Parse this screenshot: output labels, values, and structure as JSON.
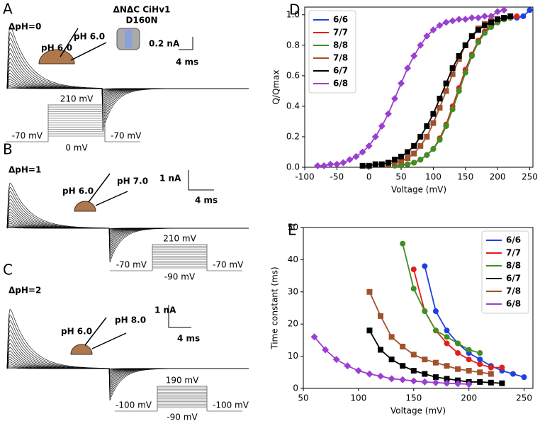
{
  "panels": [
    {
      "label": "A",
      "delta": "ΔpH=0",
      "ph_left": "pH 6.0",
      "ph_right": "pH 6.0",
      "scale_current": "0.2 nA",
      "scale_time": "4 ms",
      "construct": [
        "ΔNΔC CiHv1",
        "D160N"
      ],
      "protocol": {
        "step": "210 mV",
        "hold_left": "-70 mV",
        "low": "0 mV",
        "hold_right": "-70 mV"
      }
    },
    {
      "label": "B",
      "delta": "ΔpH=1",
      "ph_left": "pH 6.0",
      "ph_right": "pH 7.0",
      "scale_current": "1 nA",
      "scale_time": "4 ms",
      "protocol": {
        "step": "210 mV",
        "hold_left": "-70 mV",
        "low": "-90 mV",
        "hold_right": "-70 mV"
      }
    },
    {
      "label": "C",
      "delta": "ΔpH=2",
      "ph_left": "pH 6.0",
      "ph_right": "pH 8.0",
      "scale_current": "1 nA",
      "scale_time": "4 ms",
      "protocol": {
        "step": "190 mV",
        "hold_left": "-100 mV",
        "low": "-90 mV",
        "hold_right": "-100 mV"
      }
    }
  ],
  "chart_data": [
    {
      "type": "line",
      "panel_label": "D",
      "xlabel": "Voltage (mV)",
      "ylabel": "Q/Qmax",
      "xlim": [
        -100,
        255
      ],
      "ylim": [
        0,
        1.05
      ],
      "xticks": [
        -100,
        -50,
        0,
        50,
        100,
        150,
        200,
        250
      ],
      "yticks": [
        {
          "value": 0,
          "label": "0.0"
        },
        0.2,
        0.4,
        0.6,
        0.8,
        {
          "value": 1,
          "label": "1.0"
        }
      ],
      "legend": "upper left",
      "series": [
        {
          "name": "6/6",
          "color": "#1f3fe0",
          "marker": "circle",
          "x": [
            60,
            70,
            80,
            90,
            100,
            110,
            120,
            130,
            140,
            150,
            160,
            170,
            180,
            190,
            200,
            210,
            220,
            230,
            240,
            250
          ],
          "values": [
            0.02,
            0.03,
            0.05,
            0.08,
            0.12,
            0.18,
            0.27,
            0.38,
            0.5,
            0.62,
            0.73,
            0.82,
            0.88,
            0.92,
            0.95,
            0.97,
            0.98,
            0.98,
            0.99,
            1.03
          ]
        },
        {
          "name": "7/7",
          "color": "#e0201c",
          "marker": "circle",
          "x": [
            50,
            60,
            70,
            80,
            90,
            100,
            110,
            120,
            130,
            140,
            150,
            160,
            170,
            180,
            190,
            200,
            210,
            220,
            230
          ],
          "values": [
            0.02,
            0.02,
            0.03,
            0.05,
            0.08,
            0.12,
            0.19,
            0.28,
            0.4,
            0.52,
            0.64,
            0.74,
            0.83,
            0.89,
            0.93,
            0.95,
            0.97,
            0.98,
            0.99
          ]
        },
        {
          "name": "8/8",
          "color": "#3f8f22",
          "marker": "circle",
          "x": [
            40,
            50,
            60,
            70,
            80,
            90,
            100,
            110,
            120,
            130,
            140,
            150,
            160,
            170,
            180,
            190,
            200,
            210,
            220
          ],
          "values": [
            0.01,
            0.01,
            0.02,
            0.03,
            0.05,
            0.08,
            0.12,
            0.18,
            0.27,
            0.38,
            0.5,
            0.62,
            0.73,
            0.82,
            0.88,
            0.92,
            0.95,
            0.97,
            0.98
          ]
        },
        {
          "name": "7/8",
          "color": "#a0522d",
          "marker": "square",
          "x": [
            30,
            40,
            50,
            60,
            70,
            80,
            90,
            100,
            110,
            120,
            130,
            140,
            150,
            160,
            170,
            180,
            190,
            200,
            210
          ],
          "values": [
            0.02,
            0.03,
            0.04,
            0.06,
            0.09,
            0.14,
            0.2,
            0.29,
            0.39,
            0.5,
            0.61,
            0.71,
            0.8,
            0.86,
            0.91,
            0.94,
            0.96,
            0.97,
            0.98
          ]
        },
        {
          "name": "6/7",
          "color": "#000000",
          "marker": "square",
          "x": [
            -10,
            0,
            10,
            20,
            30,
            40,
            50,
            60,
            70,
            80,
            90,
            100,
            110,
            120,
            130,
            140,
            150,
            160,
            170,
            180,
            190,
            200,
            210,
            220
          ],
          "values": [
            0.01,
            0.01,
            0.02,
            0.02,
            0.03,
            0.05,
            0.07,
            0.1,
            0.14,
            0.2,
            0.27,
            0.35,
            0.45,
            0.55,
            0.65,
            0.73,
            0.8,
            0.86,
            0.9,
            0.93,
            0.95,
            0.97,
            0.98,
            0.99
          ]
        },
        {
          "name": "6/8",
          "color": "#9b3fd0",
          "marker": "diamond",
          "x": [
            -80,
            -70,
            -60,
            -50,
            -40,
            -30,
            -20,
            -10,
            0,
            10,
            20,
            30,
            40,
            50,
            60,
            70,
            80,
            90,
            100,
            110,
            120,
            130,
            140,
            150,
            160,
            170,
            180,
            190,
            200,
            210
          ],
          "values": [
            0.01,
            0.01,
            0.02,
            0.02,
            0.03,
            0.05,
            0.07,
            0.1,
            0.14,
            0.2,
            0.27,
            0.35,
            0.45,
            0.55,
            0.65,
            0.73,
            0.8,
            0.86,
            0.9,
            0.93,
            0.95,
            0.96,
            0.97,
            0.97,
            0.98,
            0.98,
            0.99,
            0.99,
            1.02,
            1.03
          ]
        }
      ]
    },
    {
      "type": "line",
      "panel_label": "E",
      "xlabel": "Voltage (mV)",
      "ylabel": "Time constant (ms)",
      "xlim": [
        50,
        258
      ],
      "ylim": [
        0,
        50
      ],
      "xticks": [
        50,
        100,
        150,
        200,
        250
      ],
      "yticks": [
        0,
        10,
        20,
        30,
        40,
        50
      ],
      "legend": "upper right",
      "series": [
        {
          "name": "6/6",
          "color": "#1f3fe0",
          "marker": "circle",
          "x": [
            160,
            170,
            180,
            190,
            200,
            210,
            220,
            230,
            240,
            250
          ],
          "values": [
            38,
            24,
            18,
            14,
            11,
            9,
            7,
            5.5,
            4.5,
            3.5
          ]
        },
        {
          "name": "7/7",
          "color": "#e0201c",
          "marker": "circle",
          "x": [
            150,
            160,
            170,
            180,
            190,
            200,
            210,
            220,
            230
          ],
          "values": [
            37,
            24,
            18,
            14,
            11,
            9,
            7.5,
            6.5,
            6.5
          ]
        },
        {
          "name": "8/8",
          "color": "#3f8f22",
          "marker": "circle",
          "x": [
            140,
            150,
            160,
            170,
            180,
            190,
            200,
            210
          ],
          "values": [
            45,
            31,
            24,
            18,
            16,
            14,
            12,
            11
          ]
        },
        {
          "name": "6/7",
          "color": "#000000",
          "marker": "square",
          "x": [
            110,
            120,
            130,
            140,
            150,
            160,
            170,
            180,
            190,
            200,
            210,
            220,
            230
          ],
          "values": [
            18,
            12,
            9,
            7,
            5.5,
            4.5,
            3.5,
            3,
            2.5,
            2,
            2,
            1.8,
            1.6
          ]
        },
        {
          "name": "7/8",
          "color": "#a0522d",
          "marker": "square",
          "x": [
            110,
            120,
            130,
            140,
            150,
            160,
            170,
            180,
            190,
            200,
            210,
            220
          ],
          "values": [
            30,
            22.5,
            16,
            13,
            10.5,
            9,
            8,
            7,
            6,
            5.5,
            5,
            4.5
          ]
        },
        {
          "name": "6/8",
          "color": "#9b3fd0",
          "marker": "diamond",
          "x": [
            60,
            70,
            80,
            90,
            100,
            110,
            120,
            130,
            140,
            150,
            160,
            170,
            180,
            190,
            200
          ],
          "values": [
            16,
            12,
            9,
            7,
            5.5,
            4.5,
            3.8,
            3,
            2.7,
            2.3,
            2,
            1.8,
            1.6,
            1.5,
            1.3
          ]
        }
      ]
    }
  ]
}
